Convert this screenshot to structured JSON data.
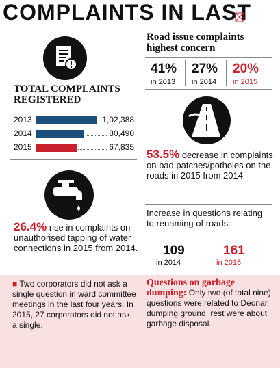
{
  "title": "COMPLAINTS IN LAST",
  "left": {
    "heading": "TOTAL COMPLAINTS REGISTERED",
    "bars": [
      {
        "year": "2013",
        "value": 102388,
        "label": "1,02,388",
        "color": "#1d4f7c"
      },
      {
        "year": "2014",
        "value": 80490,
        "label": "80,490",
        "color": "#1d4f7c"
      },
      {
        "year": "2015",
        "value": 67835,
        "label": "67,835",
        "color": "#c8202c"
      }
    ],
    "water": {
      "stat": "26.4%",
      "text": "rise in complaints on unauthorised tapping of water connections in 2015 from 2014."
    }
  },
  "right": {
    "heading": "Road issue complaints highest concern",
    "shares": [
      {
        "value": "41%",
        "year": "in 2013"
      },
      {
        "value": "27%",
        "year": "in 2014"
      },
      {
        "value": "20%",
        "year": "in 2015"
      }
    ],
    "potholes": {
      "stat": "53.5%",
      "text": "decrease in complaints on bad patches/potholes on the roads in 2015 from 2014"
    },
    "renaming": {
      "text": "Increase in questions relating to renaming of roads:",
      "counts": [
        {
          "value": "109",
          "year": "in 2014"
        },
        {
          "value": "161",
          "year": "in 2015"
        }
      ]
    }
  },
  "footer": {
    "corporators": "Two corporators did not ask a single question in ward committee meetings in the last four years. In 2015, 27 corporators did not ask a single.",
    "garbage": {
      "heading": "Questions on garbage dumping:",
      "text": "Only two (of total nine) questions were related to Deonar dumping ground, rest were about garbage disposal."
    }
  }
}
